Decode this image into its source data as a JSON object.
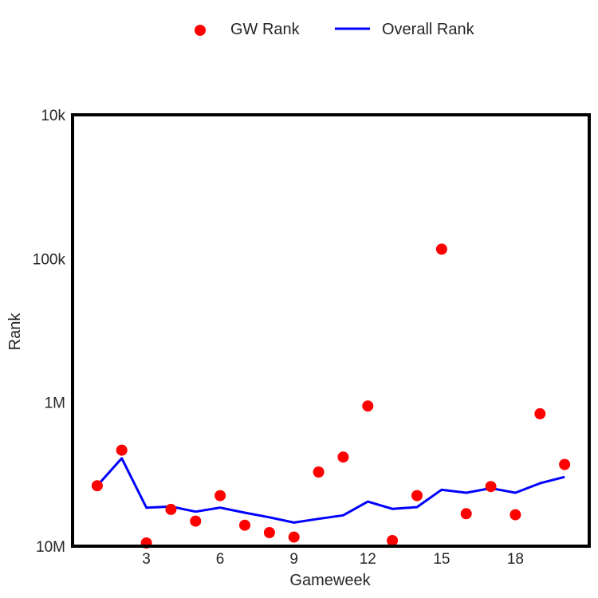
{
  "chart_data": {
    "type": "scatter",
    "xlabel": "Gameweek",
    "ylabel": "Rank",
    "x": [
      1,
      2,
      3,
      4,
      5,
      6,
      7,
      8,
      9,
      10,
      11,
      12,
      13,
      14,
      15,
      16,
      17,
      18,
      19,
      20
    ],
    "xlim": [
      0,
      21
    ],
    "x_ticks": [
      3,
      6,
      9,
      12,
      15,
      18
    ],
    "x_tick_labels": [
      "3",
      "6",
      "9",
      "12",
      "15",
      "18"
    ],
    "y_scale": "log",
    "y_inverted": true,
    "ylim": [
      10000,
      10000000
    ],
    "y_ticks": [
      10000,
      100000,
      1000000,
      10000000
    ],
    "y_tick_labels": [
      "10k",
      "100k",
      "1M",
      "10M"
    ],
    "grid": false,
    "legend_position": "top-center",
    "series": [
      {
        "name": "GW Rank",
        "type": "scatter",
        "color": "#ff0000",
        "values": [
          3800000,
          2150000,
          9500000,
          5550000,
          6700000,
          4450000,
          7150000,
          8050000,
          8650000,
          3050000,
          2400000,
          1060000,
          9150000,
          4450000,
          86000,
          5950000,
          3850000,
          6050000,
          1200000,
          2700000
        ]
      },
      {
        "name": "Overall Rank",
        "type": "line",
        "color": "#0000ff",
        "values": [
          3800000,
          2450000,
          5400000,
          5300000,
          5750000,
          5400000,
          5850000,
          6300000,
          6850000,
          6450000,
          6100000,
          4900000,
          5500000,
          5350000,
          4050000,
          4250000,
          3950000,
          4250000,
          3650000,
          3300000
        ]
      }
    ]
  }
}
